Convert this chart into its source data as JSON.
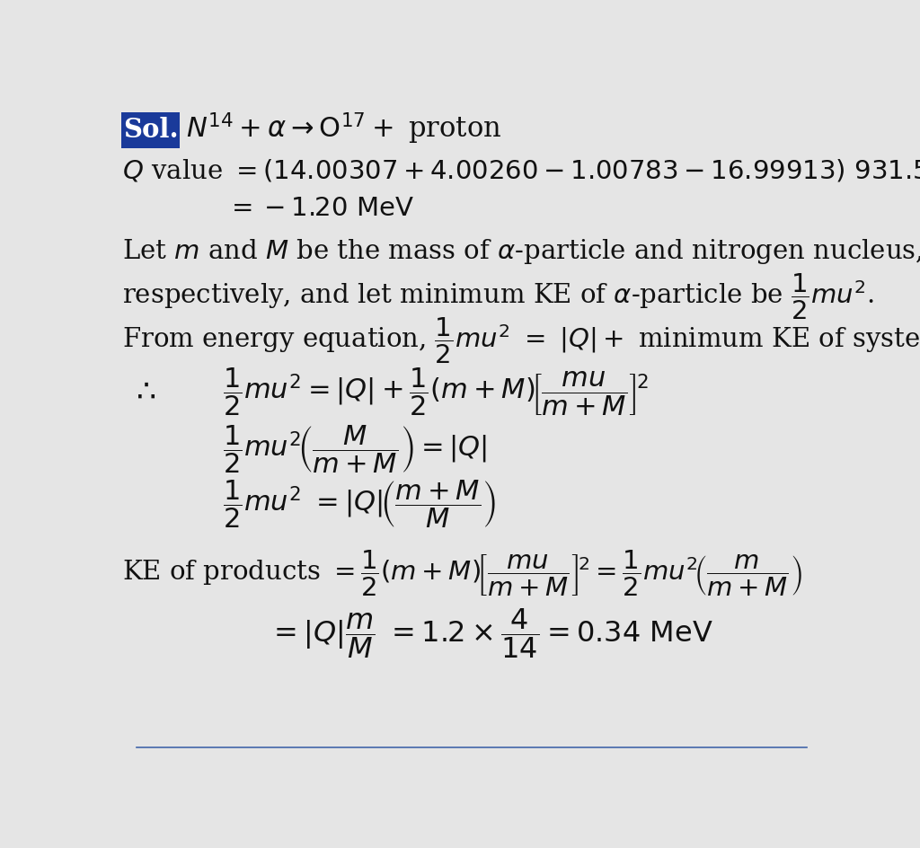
{
  "background_color": "#e5e5e5",
  "text_color": "#111111",
  "title_box_color": "#1a3a9a",
  "title_box_text": "Sol.",
  "figsize": [
    10.24,
    9.44
  ],
  "dpi": 100,
  "fs_main": 21,
  "fs_eq": 21,
  "line_positions": [
    9.05,
    8.45,
    7.9,
    7.28,
    6.62,
    5.98,
    5.25,
    4.42,
    3.62,
    2.62,
    1.75
  ]
}
